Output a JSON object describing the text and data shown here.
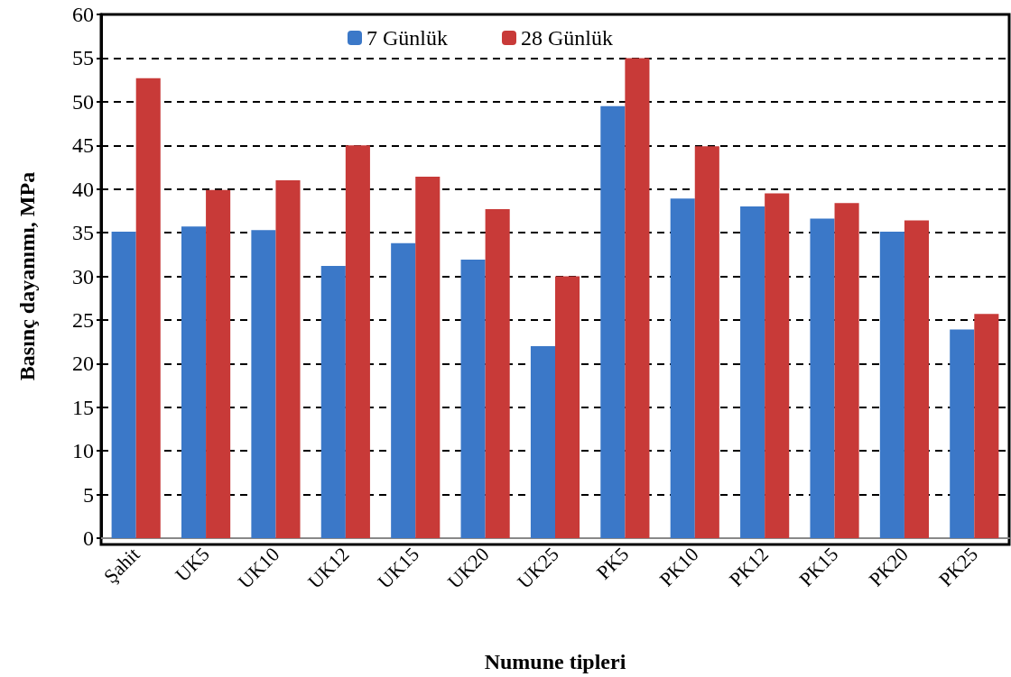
{
  "chart_data": {
    "type": "bar",
    "xlabel": "Numune tipleri",
    "ylabel": "Basınç dayanımı, MPa",
    "categories": [
      "Şahit",
      "UK5",
      "UK10",
      "UK12",
      "UK15",
      "UK20",
      "UK25",
      "PK5",
      "PK10",
      "PK12",
      "PK15",
      "PK20",
      "PK25"
    ],
    "series": [
      {
        "name": "7 Günlük",
        "color": "#3b78c8",
        "values": [
          35.1,
          35.7,
          35.3,
          31.2,
          33.8,
          31.9,
          22.0,
          49.5,
          38.9,
          38.0,
          36.6,
          35.1,
          23.9
        ]
      },
      {
        "name": "28 Günlük",
        "color": "#c83a38",
        "values": [
          52.7,
          39.9,
          41.0,
          45.0,
          41.4,
          37.7,
          30.0,
          55.0,
          44.9,
          39.5,
          38.4,
          36.4,
          25.7
        ]
      }
    ],
    "ylim": [
      0,
      60
    ],
    "yticks": [
      0,
      5,
      10,
      15,
      20,
      25,
      30,
      35,
      40,
      45,
      50,
      55,
      60
    ],
    "grid": "y",
    "legend": "top"
  }
}
